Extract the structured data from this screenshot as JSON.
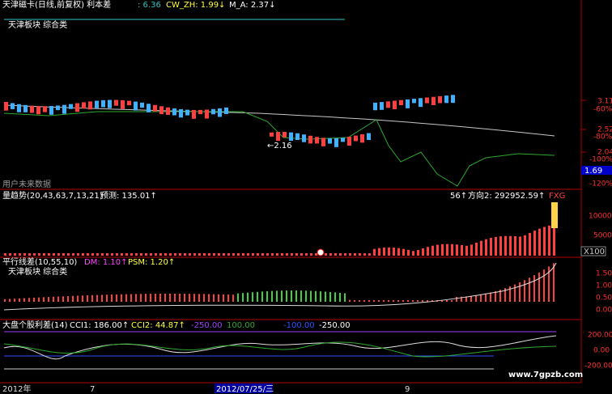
{
  "header": {
    "title": "天津磁卡(日线,前复权) 利本差",
    "price": ": 6.36",
    "cw_zh": "CW_ZH: 1.99↓",
    "m_a": "M_A: 2.37↓"
  },
  "main_panel": {
    "label": "天津板块 综合类",
    "annotation": "←2.16",
    "note": "用户未来数据",
    "axis": [
      "3.11",
      "-60%",
      "2.52",
      "-80%",
      "2.04",
      "-100%",
      "-120%"
    ],
    "current": "1.69"
  },
  "volume_panel": {
    "title": "量趋势(20,43,63,7,13,21)",
    "forecast": "预测: 135.01↑",
    "partial": "56↑",
    "direction": "方向2: 292952.59↑",
    "tag": "FXG",
    "axis": [
      "10000",
      "5000"
    ],
    "unit": "X100"
  },
  "parallel_panel": {
    "title": "平行线差(10,55,10)",
    "dm": "DM: 1.10↑",
    "psm": "PSM: 1.20↑",
    "label": "天津板块 综合类",
    "axis": [
      "1.50",
      "1.00",
      "0.50",
      "0.00"
    ]
  },
  "cci_panel": {
    "title": "大盘个股利差(14)",
    "cci1": "CCI1: 186.00↑",
    "cci2": "CCI2: 44.87↑",
    "levels": [
      "-250.00",
      "100.00",
      "-100.00",
      "-250.00"
    ],
    "axis": [
      "200.00",
      "0.00",
      "-200.00"
    ]
  },
  "date_axis": [
    "2012年",
    "7",
    "2012/07/25/三",
    "9"
  ],
  "watermark": "www.7gpzb.com"
}
